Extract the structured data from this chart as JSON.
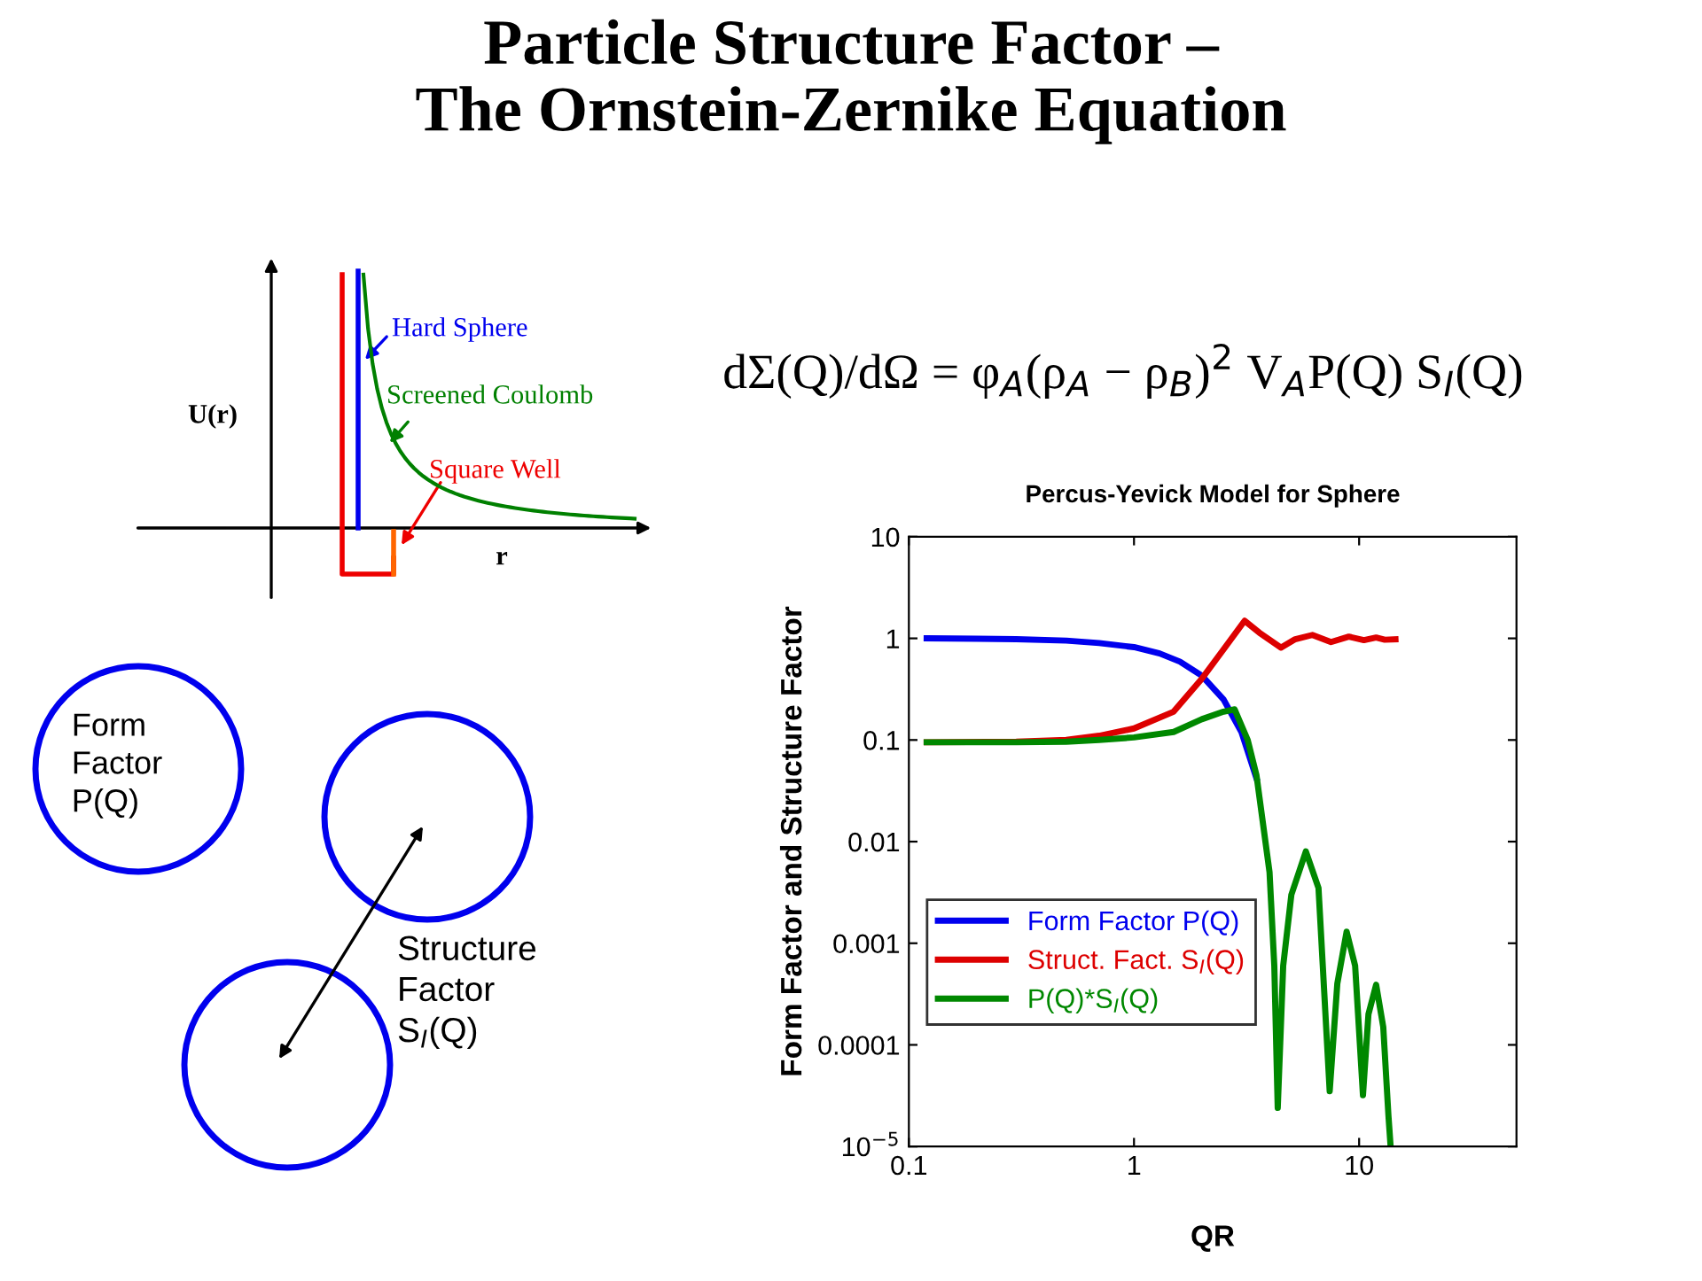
{
  "chart_data": {
    "type": "line",
    "title": "Particle Structure Factor –\nThe Ornstein-Zernike Equation",
    "subtitle": "Percus-Yevick Model for Sphere",
    "xlabel": "QR",
    "ylabel": "Form Factor and Structure Factor",
    "log": "xy",
    "xlim": [
      0.1,
      50
    ],
    "ylim": [
      1e-05,
      10
    ],
    "xticks": [
      0.1,
      1,
      10
    ],
    "yticks": [
      {
        "value": 1e-05,
        "label": "10$^{−5}$"
      },
      0.0001,
      0.001,
      0.01,
      0.1,
      1,
      10
    ],
    "legend": "bottom left",
    "grid": false,
    "line_style": "solid",
    "marker": "none",
    "series": [
      {
        "name": "Form Factor P(Q)",
        "color": "#0000ee",
        "x": [
          0.12,
          0.2,
          0.3,
          0.5,
          0.7,
          1,
          1.3,
          1.6,
          2,
          2.5,
          3,
          3.5
        ],
        "values": [
          1.0,
          0.99,
          0.98,
          0.95,
          0.9,
          0.82,
          0.71,
          0.59,
          0.43,
          0.25,
          0.12,
          0.042
        ]
      },
      {
        "name": "Struct. Fact. S$_{I}$(Q)",
        "color": "#dd0000",
        "x": [
          0.12,
          0.3,
          0.5,
          0.7,
          1,
          1.5,
          2,
          2.5,
          3.1,
          3.6,
          4.5,
          5.2,
          6.2,
          7.5,
          9,
          10.5,
          11.9,
          13,
          14.5
        ],
        "values": [
          0.095,
          0.096,
          0.1,
          0.11,
          0.13,
          0.19,
          0.4,
          0.78,
          1.49,
          1.14,
          0.81,
          0.98,
          1.08,
          0.92,
          1.04,
          0.96,
          1.02,
          0.97,
          0.98
        ]
      },
      {
        "name": "P(Q)*S$_{I}$(Q)",
        "color": "#008800",
        "x": [
          0.12,
          0.3,
          0.5,
          0.7,
          1,
          1.5,
          2,
          2.5,
          2.8,
          3.2,
          3.5,
          4,
          4.2,
          4.35,
          4.6,
          5,
          5.8,
          6.6,
          7.4,
          8,
          8.8,
          9.6,
          10.4,
          11,
          11.9,
          12.8,
          13.5,
          13.8
        ],
        "values": [
          0.095,
          0.095,
          0.096,
          0.1,
          0.106,
          0.12,
          0.16,
          0.19,
          0.2,
          0.1,
          0.045,
          0.005,
          0.0006,
          2.4e-05,
          0.0006,
          0.003,
          0.008,
          0.0035,
          3.5e-05,
          0.0004,
          0.0013,
          0.0006,
          3.2e-05,
          0.0002,
          0.00039,
          0.00015,
          2e-05,
          1e-05
        ]
      }
    ],
    "annotations": [
      "dΣ(Q)/dΩ = φ$_{A}$(ρ$_{A}$ − ρ$_{B}$)$^{2}$ V$_{A}$P(Q) S$_{I}$(Q)",
      "U(r)",
      "r",
      "Hard Sphere",
      "Screened Coulomb",
      "Square Well",
      "Form\nFactor\nP(Q)",
      "Structure\nFactor\nS$_{I}$(Q)"
    ]
  }
}
